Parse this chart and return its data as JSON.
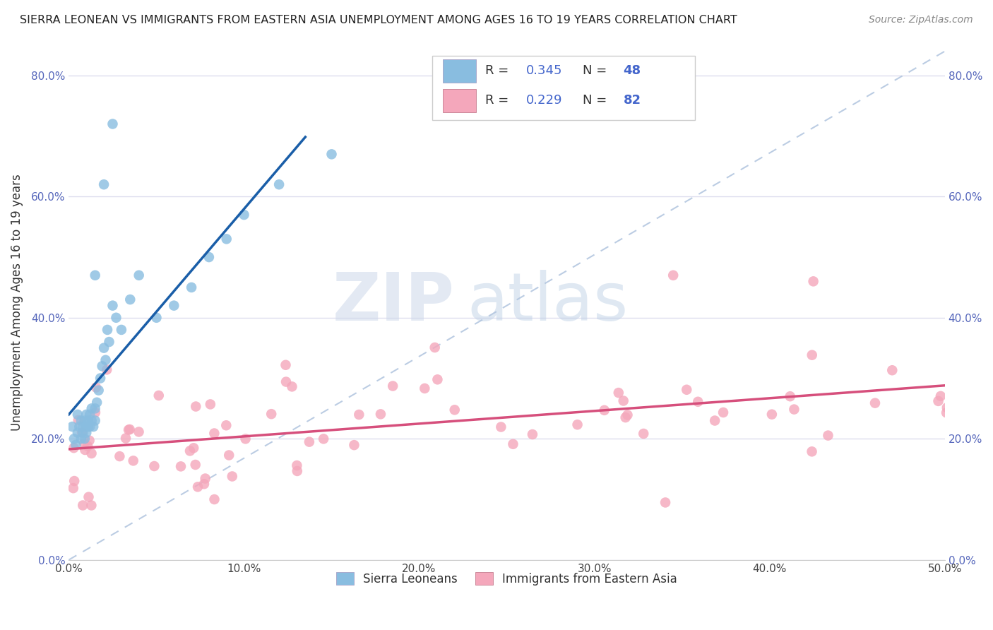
{
  "title": "SIERRA LEONEAN VS IMMIGRANTS FROM EASTERN ASIA UNEMPLOYMENT AMONG AGES 16 TO 19 YEARS CORRELATION CHART",
  "source": "Source: ZipAtlas.com",
  "ylabel": "Unemployment Among Ages 16 to 19 years",
  "xlim": [
    0.0,
    0.5
  ],
  "ylim": [
    0.0,
    0.85
  ],
  "xticks": [
    0.0,
    0.1,
    0.2,
    0.3,
    0.4,
    0.5
  ],
  "xticklabels": [
    "0.0%",
    "10.0%",
    "20.0%",
    "30.0%",
    "40.0%",
    "50.0%"
  ],
  "yticks": [
    0.0,
    0.2,
    0.4,
    0.6,
    0.8
  ],
  "yticklabels": [
    "0.0%",
    "20.0%",
    "40.0%",
    "60.0%",
    "80.0%"
  ],
  "legend_r1": "R = 0.345",
  "legend_n1": "N = 48",
  "legend_r2": "R = 0.229",
  "legend_n2": "N = 82",
  "blue_color": "#89bde0",
  "pink_color": "#f4a7bb",
  "blue_line_color": "#1a5ea8",
  "pink_line_color": "#d64f7c",
  "watermark_zip": "ZIP",
  "watermark_atlas": "atlas",
  "legend_label1": "Sierra Leoneans",
  "legend_label2": "Immigrants from Eastern Asia"
}
